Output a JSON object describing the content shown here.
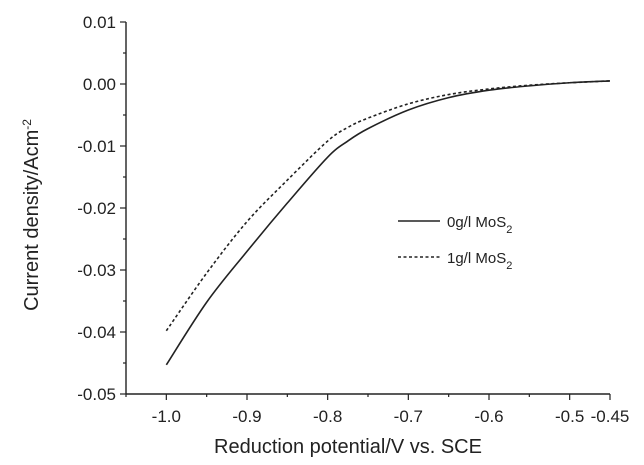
{
  "chart_data": {
    "type": "line",
    "xlabel": "Reduction potential/V vs. SCE",
    "ylabel_main": "Current density/Acm",
    "ylabel_sup": "-2",
    "xlim": [
      -1.05,
      -0.45
    ],
    "ylim": [
      -0.05,
      0.01
    ],
    "xticks": [
      -1.0,
      -0.9,
      -0.8,
      -0.7,
      -0.6,
      -0.5,
      -0.45
    ],
    "xtick_labels": [
      "-1.0",
      "-0.9",
      "-0.8",
      "-0.7",
      "-0.6",
      "-0.5",
      "-0.45"
    ],
    "yticks": [
      0.01,
      0.0,
      -0.01,
      -0.02,
      -0.03,
      -0.04,
      -0.05
    ],
    "ytick_labels": [
      "0.01",
      "0.00",
      "-0.01",
      "-0.02",
      "-0.03",
      "-0.04",
      "-0.05"
    ],
    "grid": false,
    "legend_position": "center-right",
    "series": [
      {
        "name": "0g/l MoS",
        "name_sub": "2",
        "line_style": "solid",
        "color": "#222222",
        "x": [
          -1.0,
          -0.95,
          -0.9,
          -0.85,
          -0.8,
          -0.775,
          -0.75,
          -0.7,
          -0.65,
          -0.6,
          -0.55,
          -0.5,
          -0.45
        ],
        "y": [
          -0.0453,
          -0.0352,
          -0.027,
          -0.0192,
          -0.0118,
          -0.0092,
          -0.0072,
          -0.0042,
          -0.0022,
          -0.001,
          -0.0003,
          0.0002,
          0.0005
        ]
      },
      {
        "name": "1g/l MoS",
        "name_sub": "2",
        "line_style": "dashed",
        "color": "#222222",
        "x": [
          -1.0,
          -0.95,
          -0.9,
          -0.85,
          -0.8,
          -0.775,
          -0.75,
          -0.7,
          -0.65,
          -0.6,
          -0.55,
          -0.5,
          -0.45
        ],
        "y": [
          -0.0398,
          -0.0305,
          -0.0222,
          -0.0155,
          -0.0092,
          -0.007,
          -0.0055,
          -0.0032,
          -0.0017,
          -0.0008,
          -0.0002,
          0.0002,
          0.0005
        ]
      }
    ]
  }
}
